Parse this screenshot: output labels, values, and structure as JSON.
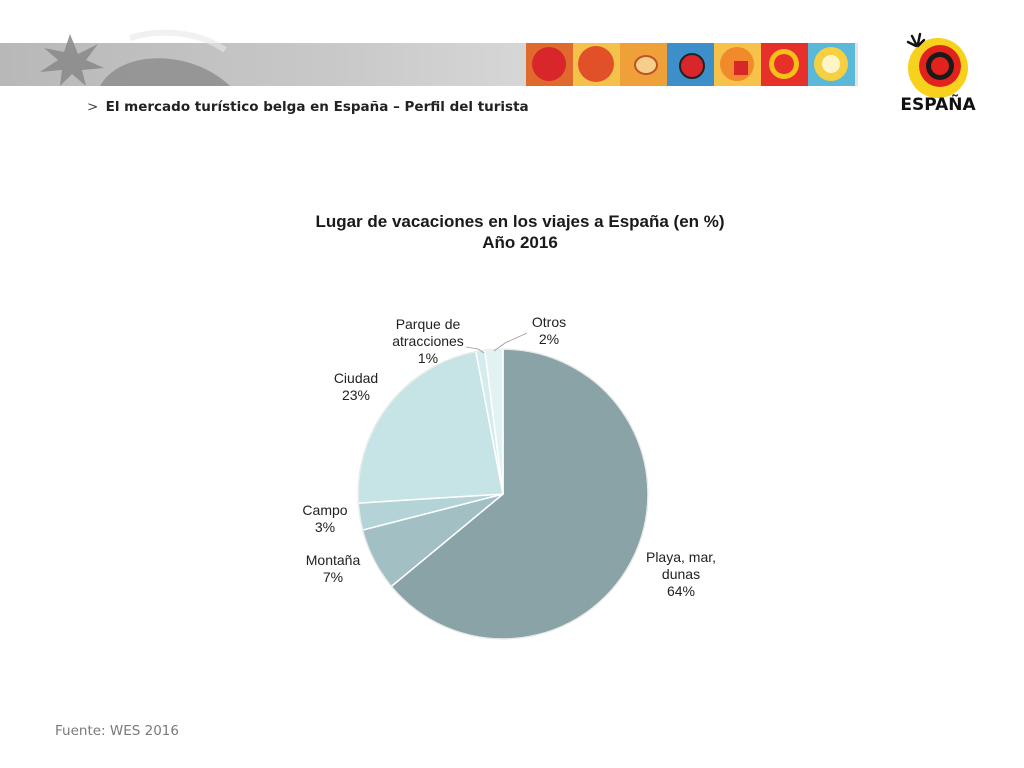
{
  "header": {
    "breadcrumb_marker": ">",
    "breadcrumb": "El mercado turístico belga en España – Perfil del turista"
  },
  "logo": {
    "text": "ESPAÑA"
  },
  "colors": {
    "slice_playa": "#8aa3a7",
    "slice_montana": "#a2bfc3",
    "slice_campo": "#b3d3d7",
    "slice_ciudad": "#c6e3e6",
    "slice_parque": "#d4ecee",
    "slice_otros": "#e2f2f3"
  },
  "chart_data": {
    "type": "pie",
    "title": "Lugar de vacaciones en los viajes a España (en %)",
    "subtitle": "Año 2016",
    "slices": [
      {
        "name": "Playa, mar, dunas",
        "label_lines": [
          "Playa, mar,",
          "dunas"
        ],
        "value": 64,
        "value_label": "64%"
      },
      {
        "name": "Montaña",
        "label_lines": [
          "Montaña"
        ],
        "value": 7,
        "value_label": "7%"
      },
      {
        "name": "Campo",
        "label_lines": [
          "Campo"
        ],
        "value": 3,
        "value_label": "3%"
      },
      {
        "name": "Ciudad",
        "label_lines": [
          "Ciudad"
        ],
        "value": 23,
        "value_label": "23%"
      },
      {
        "name": "Parque de atracciones",
        "label_lines": [
          "Parque de",
          "atracciones"
        ],
        "value": 1,
        "value_label": "1%"
      },
      {
        "name": "Otros",
        "label_lines": [
          "Otros"
        ],
        "value": 2,
        "value_label": "2%"
      }
    ]
  },
  "footer": {
    "source": "Fuente: WES 2016"
  }
}
